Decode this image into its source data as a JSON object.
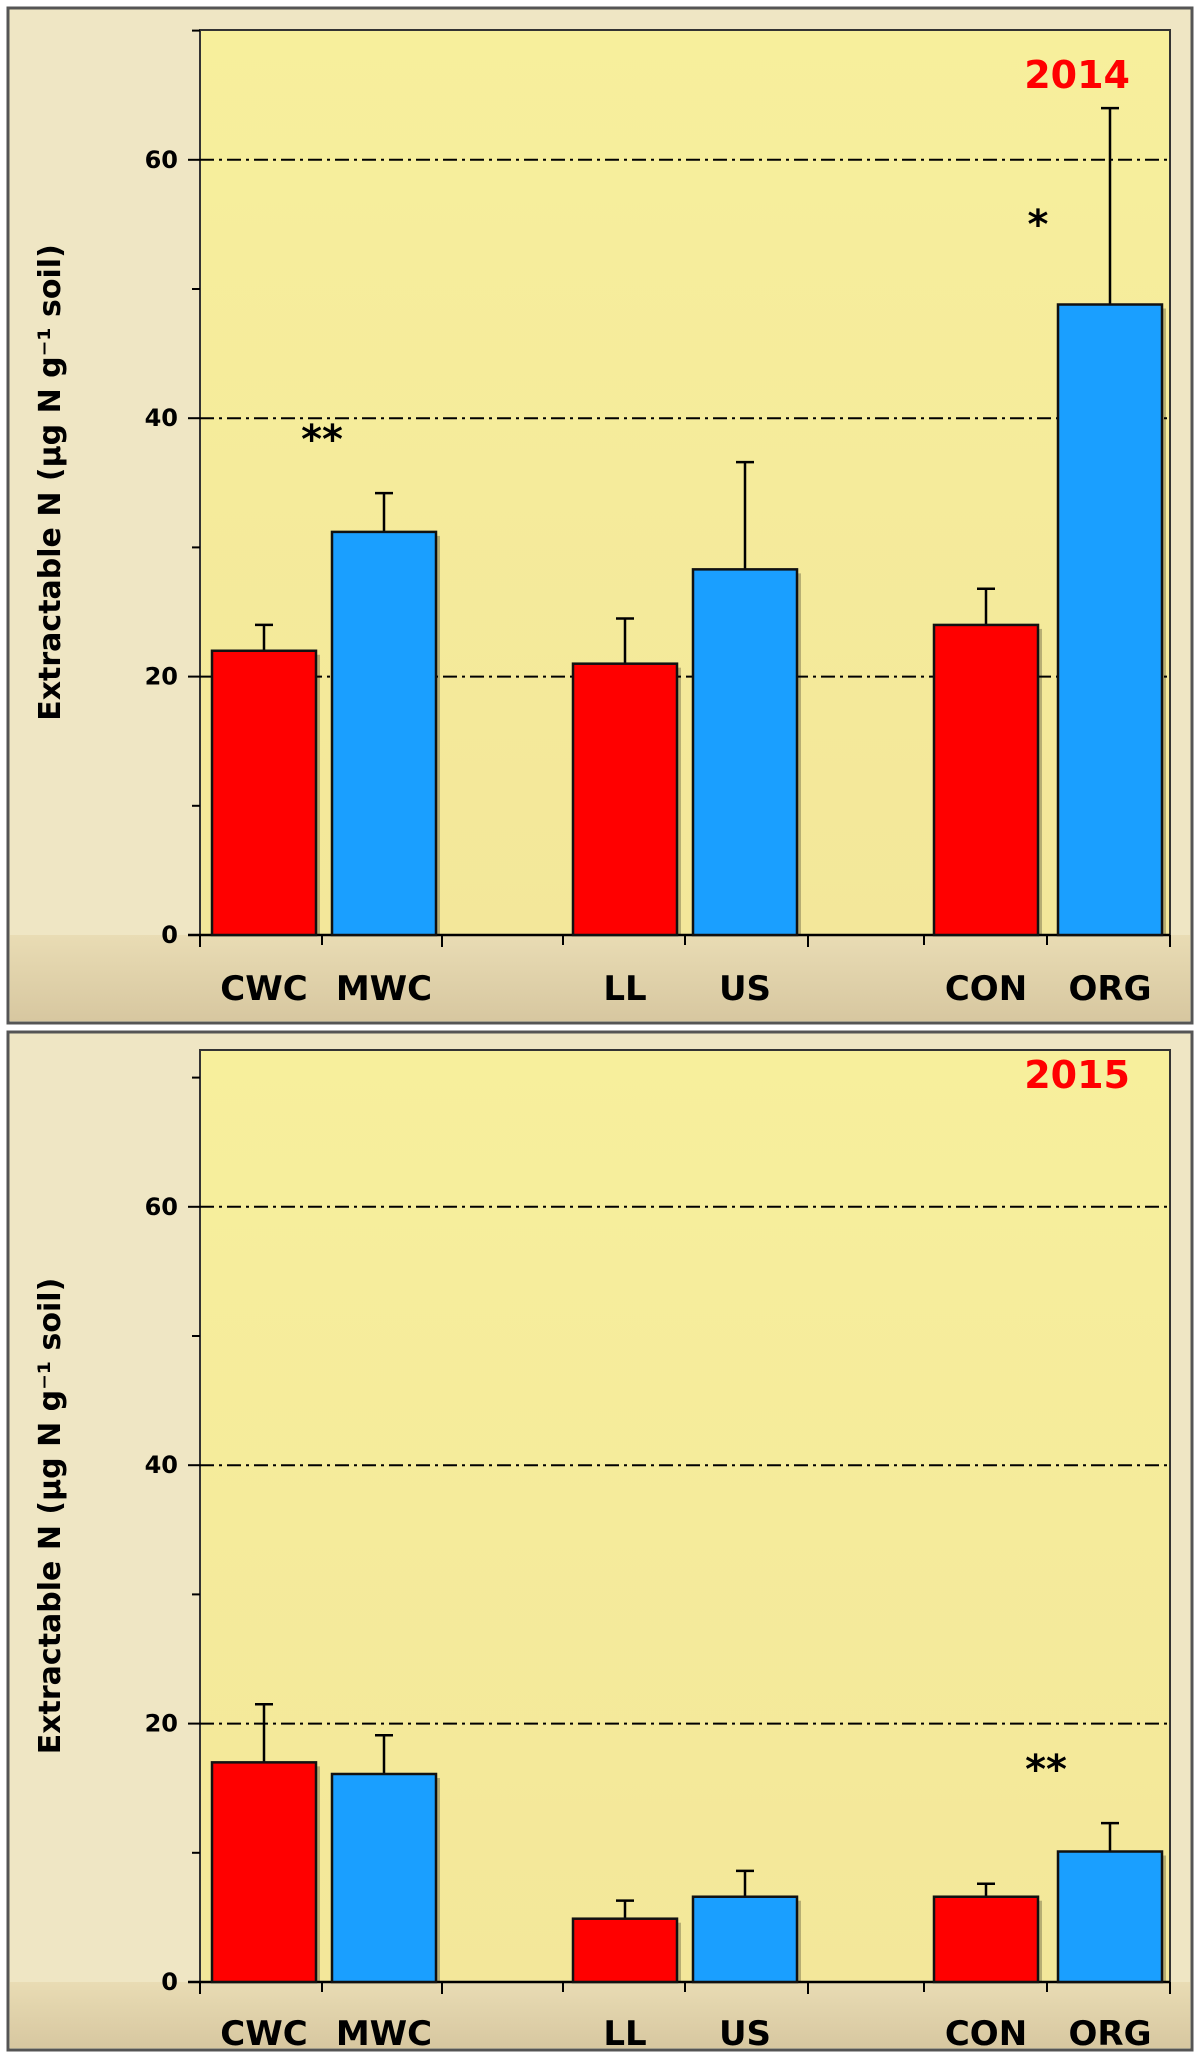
{
  "chart_data": [
    {
      "type": "bar",
      "title": "2014",
      "title_color": "#ff0000",
      "ylabel": "Extractable  N (µg N g⁻¹ soil)",
      "ylim": [
        0,
        70
      ],
      "yticks": [
        0,
        20,
        40,
        60
      ],
      "grid": "dash-dot horizontal at major ticks",
      "groups": [
        {
          "bars": [
            {
              "category": "CWC",
              "value": 22,
              "error": 2,
              "color": "#ff0000"
            },
            {
              "category": "MWC",
              "value": 31.2,
              "error": 3,
              "color": "#1a9fff"
            }
          ],
          "annotation": "**"
        },
        {
          "bars": [
            {
              "category": "LL",
              "value": 21,
              "error": 3.5,
              "color": "#ff0000"
            },
            {
              "category": "US",
              "value": 28.3,
              "error": 8.3,
              "color": "#1a9fff"
            }
          ],
          "annotation": ""
        },
        {
          "bars": [
            {
              "category": "CON",
              "value": 24,
              "error": 2.8,
              "color": "#ff0000"
            },
            {
              "category": "ORG",
              "value": 48.8,
              "error": 15.2,
              "color": "#1a9fff"
            }
          ],
          "annotation": "*"
        }
      ]
    },
    {
      "type": "bar",
      "title": "2015",
      "title_color": "#ff0000",
      "ylabel": "Extractable N (µg N g⁻¹ soil)",
      "ylim": [
        0,
        70
      ],
      "yticks": [
        0,
        20,
        40,
        60
      ],
      "grid": "dash-dot horizontal at major ticks",
      "groups": [
        {
          "bars": [
            {
              "category": "CWC",
              "value": 17,
              "error": 4.5,
              "color": "#ff0000"
            },
            {
              "category": "MWC",
              "value": 16.1,
              "error": 3,
              "color": "#1a9fff"
            }
          ],
          "annotation": ""
        },
        {
          "bars": [
            {
              "category": "LL",
              "value": 4.9,
              "error": 1.4,
              "color": "#ff0000"
            },
            {
              "category": "US",
              "value": 6.6,
              "error": 2,
              "color": "#1a9fff"
            }
          ],
          "annotation": ""
        },
        {
          "bars": [
            {
              "category": "CON",
              "value": 6.6,
              "error": 1,
              "color": "#ff0000"
            },
            {
              "category": "ORG",
              "value": 10.1,
              "error": 2.2,
              "color": "#1a9fff"
            }
          ],
          "annotation": "**"
        }
      ]
    }
  ]
}
